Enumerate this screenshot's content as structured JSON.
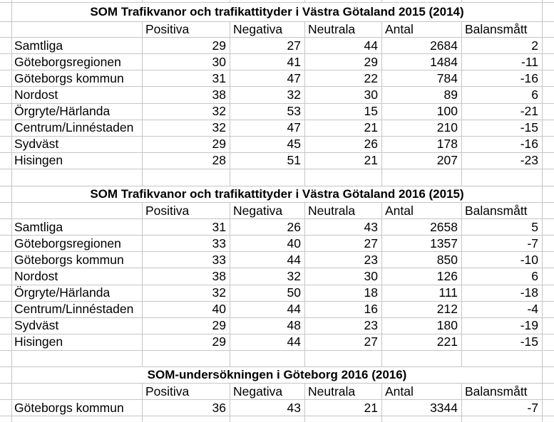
{
  "colors": {
    "gridline": "#c6c6c6",
    "text": "#000000",
    "background": "#ffffff"
  },
  "tables": [
    {
      "title": "SOM Trafikvanor och trafikattityder i Västra Götaland 2015 (2014)",
      "columns": [
        "Positiva",
        "Negativa",
        "Neutrala",
        "Antal",
        "Balansmått"
      ],
      "rows": [
        {
          "label": "Samtliga",
          "values": [
            29,
            27,
            44,
            2684,
            2
          ]
        },
        {
          "label": "Göteborgsregionen",
          "values": [
            30,
            41,
            29,
            1484,
            -11
          ]
        },
        {
          "label": "Göteborgs kommun",
          "values": [
            31,
            47,
            22,
            784,
            -16
          ]
        },
        {
          "label": "Nordost",
          "values": [
            38,
            32,
            30,
            89,
            6
          ]
        },
        {
          "label": "Örgryte/Härlanda",
          "values": [
            32,
            53,
            15,
            100,
            -21
          ]
        },
        {
          "label": "Centrum/Linnéstaden",
          "values": [
            32,
            47,
            21,
            210,
            -15
          ]
        },
        {
          "label": "Sydväst",
          "values": [
            29,
            45,
            26,
            178,
            -16
          ]
        },
        {
          "label": "Hisingen",
          "values": [
            28,
            51,
            21,
            207,
            -23
          ]
        }
      ]
    },
    {
      "title": "SOM Trafikvanor och trafikattityder i Västra Götaland 2016 (2015)",
      "columns": [
        "Positiva",
        "Negativa",
        "Neutrala",
        "Antal",
        "Balansmått"
      ],
      "rows": [
        {
          "label": "Samtliga",
          "values": [
            31,
            26,
            43,
            2658,
            5
          ]
        },
        {
          "label": "Göteborgsregionen",
          "values": [
            33,
            40,
            27,
            1357,
            -7
          ]
        },
        {
          "label": "Göteborgs kommun",
          "values": [
            33,
            44,
            23,
            850,
            -10
          ]
        },
        {
          "label": "Nordost",
          "values": [
            38,
            32,
            30,
            126,
            6
          ]
        },
        {
          "label": "Örgryte/Härlanda",
          "values": [
            32,
            50,
            18,
            111,
            -18
          ]
        },
        {
          "label": "Centrum/Linnéstaden",
          "values": [
            40,
            44,
            16,
            212,
            -4
          ]
        },
        {
          "label": "Sydväst",
          "values": [
            29,
            48,
            23,
            180,
            -19
          ]
        },
        {
          "label": "Hisingen",
          "values": [
            29,
            44,
            27,
            221,
            -15
          ]
        }
      ]
    },
    {
      "title": "SOM-undersökningen i Göteborg 2016 (2016)",
      "columns": [
        "Positiva",
        "Negativa",
        "Neutrala",
        "Antal",
        "Balansmått"
      ],
      "rows": [
        {
          "label": "Göteborgs kommun",
          "values": [
            36,
            43,
            21,
            3344,
            -7
          ]
        }
      ]
    }
  ]
}
